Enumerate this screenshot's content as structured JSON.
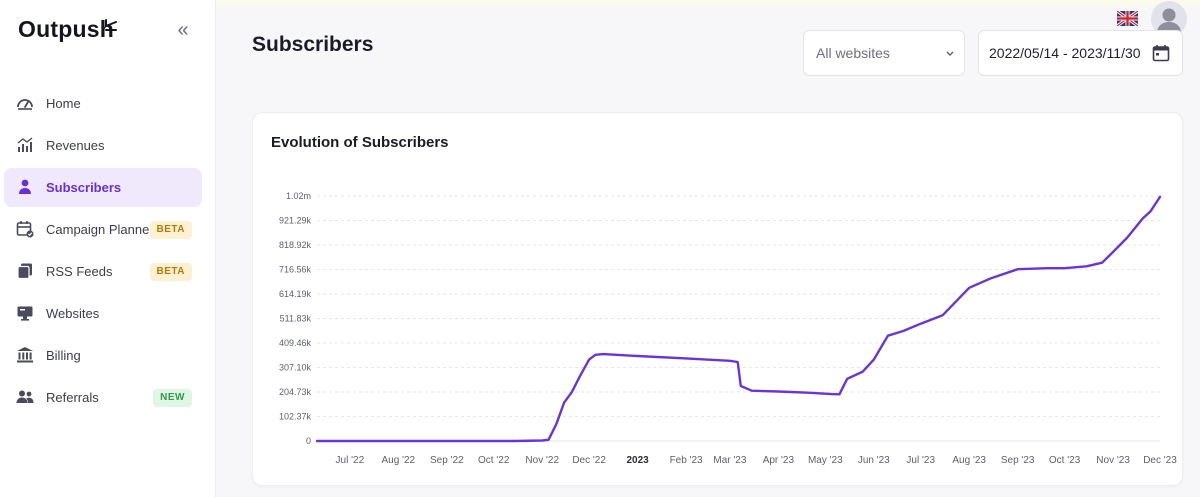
{
  "brand": {
    "name": "Outpush"
  },
  "sidebar": {
    "items": [
      {
        "label": "Home",
        "icon": "gauge-icon",
        "active": false,
        "badge": ""
      },
      {
        "label": "Revenues",
        "icon": "bar-chart-icon",
        "active": false,
        "badge": ""
      },
      {
        "label": "Subscribers",
        "icon": "person-icon",
        "active": true,
        "badge": ""
      },
      {
        "label": "Campaign Planner",
        "icon": "calendar-check-icon",
        "active": false,
        "badge": "BETA"
      },
      {
        "label": "RSS Feeds",
        "icon": "feed-stack-icon",
        "active": false,
        "badge": "BETA"
      },
      {
        "label": "Websites",
        "icon": "monitor-icon",
        "active": false,
        "badge": ""
      },
      {
        "label": "Billing",
        "icon": "bank-icon",
        "active": false,
        "badge": ""
      },
      {
        "label": "Referrals",
        "icon": "people-icon",
        "active": false,
        "badge": "NEW"
      }
    ]
  },
  "header": {
    "title": "Subscribers",
    "language": "en-GB flag"
  },
  "filters": {
    "website": "All websites",
    "date_range": "2022/05/14 - 2023/11/30"
  },
  "colors": {
    "accent": "#6b2fd6",
    "line": "#6a35d8",
    "active_bg": "#efe9fb"
  },
  "card": {
    "title": "Evolution of Subscribers"
  },
  "chart_data": {
    "type": "line",
    "title": "Evolution of Subscribers",
    "xlabel": "",
    "ylabel": "",
    "y_ticks": [
      "0",
      "102.37k",
      "204.73k",
      "307.10k",
      "409.46k",
      "511.83k",
      "614.19k",
      "716.56k",
      "818.92k",
      "921.29k",
      "1.02m"
    ],
    "ylim": [
      0,
      1023650
    ],
    "x_ticks": [
      "Jul '22",
      "Aug '22",
      "Sep '22",
      "Oct '22",
      "Nov '22",
      "Dec '22",
      "2023",
      "Feb '23",
      "Mar '23",
      "Apr '23",
      "May '23",
      "Jun '23",
      "Jul '23",
      "Aug '23",
      "Sep '23",
      "Oct '23",
      "Nov '23",
      "Dec '23"
    ],
    "x_range": [
      "2022-06-10",
      "2023-12-01"
    ],
    "grid": true,
    "series": [
      {
        "color": "#6a35d8",
        "points": [
          [
            "2022-06-10",
            0
          ],
          [
            "2022-07-15",
            0
          ],
          [
            "2022-08-15",
            0
          ],
          [
            "2022-09-15",
            0
          ],
          [
            "2022-10-15",
            0
          ],
          [
            "2022-11-01",
            2000
          ],
          [
            "2022-11-05",
            5000
          ],
          [
            "2022-11-10",
            70000
          ],
          [
            "2022-11-15",
            160000
          ],
          [
            "2022-11-20",
            205000
          ],
          [
            "2022-11-25",
            270000
          ],
          [
            "2022-12-01",
            340000
          ],
          [
            "2022-12-05",
            360000
          ],
          [
            "2022-12-10",
            363000
          ],
          [
            "2023-01-01",
            355000
          ],
          [
            "2023-02-01",
            345000
          ],
          [
            "2023-03-01",
            335000
          ],
          [
            "2023-03-06",
            330000
          ],
          [
            "2023-03-08",
            230000
          ],
          [
            "2023-03-15",
            210000
          ],
          [
            "2023-03-25",
            208000
          ],
          [
            "2023-04-01",
            207000
          ],
          [
            "2023-04-20",
            202000
          ],
          [
            "2023-05-05",
            196000
          ],
          [
            "2023-05-10",
            195000
          ],
          [
            "2023-05-15",
            260000
          ],
          [
            "2023-05-25",
            290000
          ],
          [
            "2023-06-01",
            340000
          ],
          [
            "2023-06-10",
            440000
          ],
          [
            "2023-06-20",
            460000
          ],
          [
            "2023-07-01",
            490000
          ],
          [
            "2023-07-15",
            525000
          ],
          [
            "2023-08-01",
            640000
          ],
          [
            "2023-08-15",
            680000
          ],
          [
            "2023-09-01",
            718000
          ],
          [
            "2023-09-20",
            722000
          ],
          [
            "2023-10-01",
            722000
          ],
          [
            "2023-10-15",
            730000
          ],
          [
            "2023-10-25",
            745000
          ],
          [
            "2023-11-01",
            790000
          ],
          [
            "2023-11-10",
            850000
          ],
          [
            "2023-11-20",
            930000
          ],
          [
            "2023-11-25",
            960000
          ],
          [
            "2023-12-01",
            1020000
          ]
        ]
      }
    ]
  }
}
